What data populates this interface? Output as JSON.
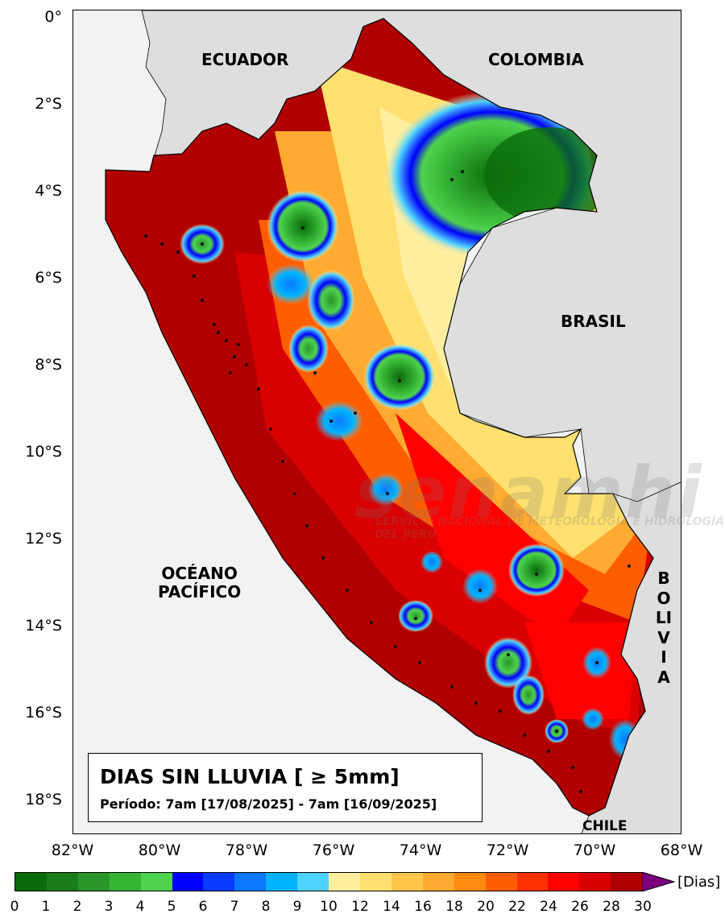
{
  "lat_ticks": [
    "0°",
    "2°S",
    "4°S",
    "6°S",
    "8°S",
    "10°S",
    "12°S",
    "14°S",
    "16°S",
    "18°S"
  ],
  "lon_ticks": [
    "82°W",
    "80°W",
    "78°W",
    "76°W",
    "74°W",
    "72°W",
    "70°W",
    "68°W"
  ],
  "countries": {
    "ecuador": "ECUADOR",
    "colombia": "COLOMBIA",
    "brasil": "BRASIL",
    "bolivia": "BOLIVIA",
    "chile": "CHILE"
  },
  "ocean": {
    "line1": "OCÉANO",
    "line2": "PACÍFICO"
  },
  "legend_box": {
    "title": "DIAS SIN LLUVIA [ ≥ 5mm]",
    "period": "Período: 7am [17/08/2025] - 7am [16/09/2025]"
  },
  "watermark": {
    "logo_text": "senamhi",
    "subtitle": "SERVICIO NACIONAL DE METEOROLOGÍA E HIDROLOGÍA DEL PERÚ"
  },
  "colorbar": {
    "unit": "[Dias]",
    "tick_labels": [
      "0",
      "1",
      "2",
      "3",
      "4",
      "5",
      "6",
      "7",
      "8",
      "9",
      "10",
      "12",
      "14",
      "16",
      "18",
      "20",
      "22",
      "24",
      "26",
      "28",
      "30"
    ],
    "colors": [
      "#0b6b0b",
      "#1a7d1a",
      "#2a962a",
      "#36b436",
      "#4fd24f",
      "#0000ff",
      "#0a3cff",
      "#0a78ff",
      "#00b4ff",
      "#4ed2ff",
      "#ffeea0",
      "#ffe070",
      "#ffc44a",
      "#ffaa30",
      "#ff8a10",
      "#ff5e00",
      "#ff3000",
      "#ff0000",
      "#d80000",
      "#b00000"
    ],
    "extend_color": "#7a0080"
  }
}
